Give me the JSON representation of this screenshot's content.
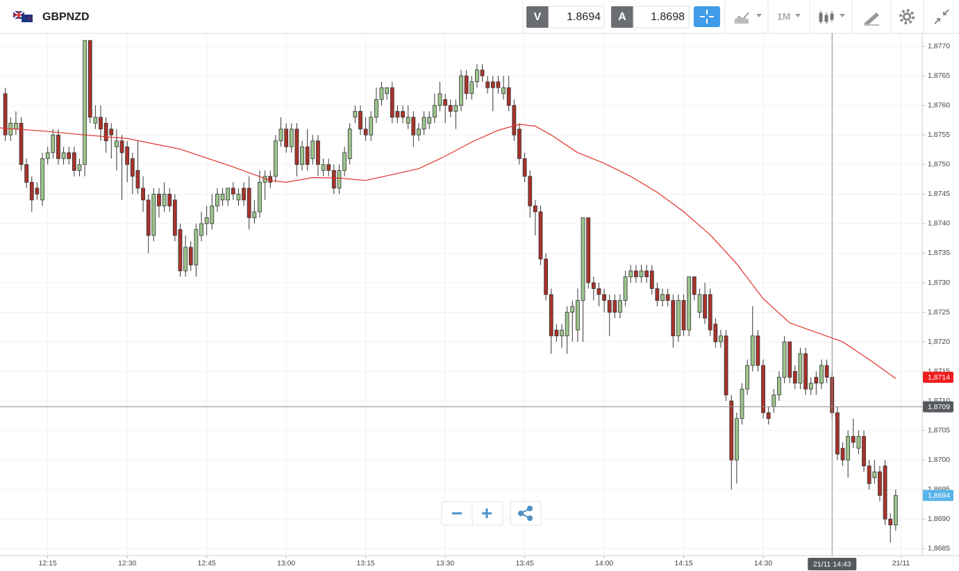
{
  "header": {
    "symbol": "GBPNZD",
    "sell_label": "V",
    "sell": 1.8694,
    "buy_label": "A",
    "buy": 1.8698,
    "period": "1M"
  },
  "chart_data": {
    "type": "candlestick",
    "up_color": "#9cc48d",
    "down_color": "#a8332a",
    "outline_color": "#333333",
    "xlim": [
      "12:06",
      "15:00"
    ],
    "ylim": [
      1.86838,
      1.87722
    ],
    "grid": true,
    "xticks": [
      "12:15",
      "12:30",
      "12:45",
      "13:00",
      "13:15",
      "13:30",
      "13:45",
      "14:00",
      "14:15",
      "14:30",
      {
        "value": "14:56",
        "label": "21/11"
      }
    ],
    "yticks": [
      {
        "value": 1.8685,
        "label": "1,8685"
      },
      {
        "value": 1.869,
        "label": "1,8690"
      },
      {
        "value": 1.8695,
        "label": "1,8695"
      },
      {
        "value": 1.87,
        "label": "1,8700"
      },
      {
        "value": 1.8705,
        "label": "1,8705"
      },
      {
        "value": 1.871,
        "label": "1,8710"
      },
      {
        "value": 1.8715,
        "label": "1,8715"
      },
      {
        "value": 1.872,
        "label": "1,8720"
      },
      {
        "value": 1.8725,
        "label": "1,8725"
      },
      {
        "value": 1.873,
        "label": "1,8730"
      },
      {
        "value": 1.8735,
        "label": "1,8735"
      },
      {
        "value": 1.874,
        "label": "1,8740"
      },
      {
        "value": 1.8745,
        "label": "1,8745"
      },
      {
        "value": 1.875,
        "label": "1,8750"
      },
      {
        "value": 1.8755,
        "label": "1,8755"
      },
      {
        "value": 1.876,
        "label": "1,8760"
      },
      {
        "value": 1.8765,
        "label": "1,8765"
      },
      {
        "value": 1.877,
        "label": "1,8770"
      }
    ],
    "x": [
      "12:07",
      "12:08",
      "12:09",
      "12:10",
      "12:11",
      "12:12",
      "12:13",
      "12:14",
      "12:15",
      "12:16",
      "12:17",
      "12:18",
      "12:19",
      "12:20",
      "12:21",
      "12:22",
      "12:23",
      "12:24",
      "12:25",
      "12:26",
      "12:27",
      "12:28",
      "12:29",
      "12:30",
      "12:31",
      "12:32",
      "12:33",
      "12:34",
      "12:35",
      "12:36",
      "12:37",
      "12:38",
      "12:39",
      "12:40",
      "12:41",
      "12:42",
      "12:43",
      "12:44",
      "12:45",
      "12:46",
      "12:47",
      "12:48",
      "12:49",
      "12:50",
      "12:51",
      "12:52",
      "12:53",
      "12:54",
      "12:55",
      "12:56",
      "12:57",
      "12:58",
      "12:59",
      "13:00",
      "13:01",
      "13:02",
      "13:03",
      "13:04",
      "13:05",
      "13:06",
      "13:07",
      "13:08",
      "13:09",
      "13:10",
      "13:11",
      "13:12",
      "13:13",
      "13:14",
      "13:15",
      "13:16",
      "13:17",
      "13:18",
      "13:19",
      "13:20",
      "13:21",
      "13:22",
      "13:23",
      "13:24",
      "13:25",
      "13:26",
      "13:27",
      "13:28",
      "13:29",
      "13:30",
      "13:31",
      "13:32",
      "13:33",
      "13:34",
      "13:35",
      "13:36",
      "13:37",
      "13:38",
      "13:39",
      "13:40",
      "13:41",
      "13:42",
      "13:43",
      "13:44",
      "13:45",
      "13:46",
      "13:47",
      "13:48",
      "13:49",
      "13:50",
      "13:51",
      "13:52",
      "13:53",
      "13:54",
      "13:55",
      "13:56",
      "13:57",
      "13:58",
      "13:59",
      "14:00",
      "14:01",
      "14:02",
      "14:03",
      "14:04",
      "14:05",
      "14:06",
      "14:07",
      "14:08",
      "14:09",
      "14:10",
      "14:11",
      "14:12",
      "14:13",
      "14:14",
      "14:15",
      "14:16",
      "14:17",
      "14:18",
      "14:19",
      "14:20",
      "14:21",
      "14:22",
      "14:23",
      "14:24",
      "14:25",
      "14:26",
      "14:27",
      "14:28",
      "14:29",
      "14:30",
      "14:31",
      "14:32",
      "14:33",
      "14:34",
      "14:35",
      "14:36",
      "14:37",
      "14:38",
      "14:39",
      "14:40",
      "14:41",
      "14:42",
      "14:43",
      "14:44",
      "14:45",
      "14:46",
      "14:47",
      "14:48",
      "14:49",
      "14:50",
      "14:51",
      "14:52",
      "14:53",
      "14:54",
      "14:55"
    ],
    "open": [
      1.8762,
      1.8755,
      1.8756,
      1.8757,
      1.875,
      1.8747,
      1.8746,
      1.8744,
      1.8751,
      1.8752,
      1.8755,
      1.8751,
      1.8752,
      1.8752,
      1.8749,
      1.875,
      1.8771,
      1.8757,
      1.8758,
      1.8757,
      1.8756,
      1.8753,
      1.8754,
      1.8753,
      1.8751,
      1.8749,
      1.8746,
      1.8744,
      1.8738,
      1.8745,
      1.8743,
      1.8745,
      1.8744,
      1.8739,
      1.8732,
      1.8736,
      1.8733,
      1.8738,
      1.874,
      1.874,
      1.8743,
      1.8744,
      1.8744,
      1.8746,
      1.8744,
      1.8746,
      1.8746,
      1.8741,
      1.8742,
      1.8747,
      1.8748,
      1.8748,
      1.8754,
      1.8756,
      1.8753,
      1.8756,
      1.875,
      1.8753,
      1.8751,
      1.8754,
      1.8749,
      1.875,
      1.8749,
      1.8746,
      1.8749,
      1.8751,
      1.8758,
      1.8759,
      1.8756,
      1.8755,
      1.8758,
      1.8761,
      1.8762,
      1.8763,
      1.8759,
      1.8759,
      1.8757,
      1.8758,
      1.8755,
      1.8756,
      1.8757,
      1.8758,
      1.876,
      1.8761,
      1.876,
      1.8759,
      1.876,
      1.8765,
      1.8762,
      1.8764,
      1.8766,
      1.8764,
      1.8764,
      1.8764,
      1.8762,
      1.8763,
      1.876,
      1.8756,
      1.8751,
      1.8748,
      1.8743,
      1.8742,
      1.8734,
      1.8728,
      1.8722,
      1.8721,
      1.8721,
      1.8725,
      1.8722,
      1.8727,
      1.8741,
      1.873,
      1.8729,
      1.8728,
      1.8727,
      1.8727,
      1.8725,
      1.8727,
      1.8731,
      1.8732,
      1.8731,
      1.8732,
      1.8732,
      1.8729,
      1.8727,
      1.8728,
      1.8727,
      1.8721,
      1.8727,
      1.8722,
      1.8731,
      1.8725,
      1.8728,
      1.8728,
      1.8723,
      1.872,
      1.8721,
      1.871,
      1.87,
      1.8707,
      1.8712,
      1.8716,
      1.8721,
      1.8716,
      1.8708,
      1.8709,
      1.8711,
      1.8714,
      1.872,
      1.8715,
      1.8713,
      1.8718,
      1.8712,
      1.8714,
      1.8713,
      1.8716,
      1.8714,
      1.8708,
      1.8702,
      1.87,
      1.8704,
      1.8702,
      1.8704,
      1.8699,
      1.8697,
      1.8698,
      1.8699,
      1.869,
      1.8689
    ],
    "high": [
      1.8763,
      1.8758,
      1.8759,
      1.8758,
      1.8751,
      1.8748,
      1.8747,
      1.8752,
      1.8753,
      1.8756,
      1.8756,
      1.8753,
      1.8753,
      1.8753,
      1.8751,
      1.8771,
      1.8771,
      1.876,
      1.876,
      1.8758,
      1.8757,
      1.8756,
      1.8755,
      1.8754,
      1.8752,
      1.8754,
      1.8748,
      1.8745,
      1.8746,
      1.8746,
      1.8747,
      1.8746,
      1.8745,
      1.874,
      1.8738,
      1.8737,
      1.874,
      1.8742,
      1.8743,
      1.8745,
      1.8746,
      1.8746,
      1.8746,
      1.8747,
      1.8746,
      1.8747,
      1.8748,
      1.8744,
      1.8749,
      1.8749,
      1.8749,
      1.8755,
      1.8758,
      1.8757,
      1.8757,
      1.8757,
      1.8754,
      1.8756,
      1.8755,
      1.8755,
      1.8751,
      1.8751,
      1.875,
      1.875,
      1.8753,
      1.8757,
      1.876,
      1.876,
      1.8758,
      1.8759,
      1.8763,
      1.8764,
      1.8763,
      1.8764,
      1.876,
      1.876,
      1.876,
      1.8759,
      1.8757,
      1.8759,
      1.8759,
      1.8762,
      1.8764,
      1.8762,
      1.8761,
      1.8761,
      1.8766,
      1.8766,
      1.8765,
      1.8767,
      1.8767,
      1.8765,
      1.8765,
      1.8765,
      1.8765,
      1.8765,
      1.8761,
      1.8757,
      1.8752,
      1.8749,
      1.8744,
      1.8743,
      1.8735,
      1.8729,
      1.8723,
      1.8723,
      1.8726,
      1.8727,
      1.8729,
      1.8741,
      1.8741,
      1.8731,
      1.873,
      1.8729,
      1.8728,
      1.8728,
      1.8728,
      1.8732,
      1.8733,
      1.8733,
      1.8733,
      1.8733,
      1.8733,
      1.873,
      1.8729,
      1.8729,
      1.8728,
      1.8728,
      1.8728,
      1.8731,
      1.8731,
      1.8729,
      1.873,
      1.8729,
      1.8724,
      1.8722,
      1.8722,
      1.8711,
      1.8708,
      1.8713,
      1.8717,
      1.8726,
      1.8722,
      1.8717,
      1.8709,
      1.8712,
      1.8715,
      1.8721,
      1.872,
      1.8716,
      1.8719,
      1.8719,
      1.8714,
      1.8715,
      1.8717,
      1.8717,
      1.8715,
      1.8709,
      1.8703,
      1.8705,
      1.8707,
      1.8705,
      1.8705,
      1.87,
      1.87,
      1.8699,
      1.87,
      1.8691,
      1.8695
    ],
    "low": [
      1.8754,
      1.8754,
      1.8755,
      1.8749,
      1.8746,
      1.8742,
      1.8744,
      1.8743,
      1.875,
      1.8751,
      1.875,
      1.875,
      1.875,
      1.8748,
      1.8748,
      1.8748,
      1.8757,
      1.8756,
      1.8754,
      1.8752,
      1.8751,
      1.8749,
      1.8744,
      1.8747,
      1.8745,
      1.8745,
      1.8742,
      1.8735,
      1.8737,
      1.8741,
      1.8742,
      1.8742,
      1.8737,
      1.8731,
      1.8731,
      1.8732,
      1.8731,
      1.8737,
      1.8738,
      1.8739,
      1.8742,
      1.8743,
      1.8743,
      1.8744,
      1.8743,
      1.8743,
      1.8739,
      1.874,
      1.8741,
      1.8744,
      1.8746,
      1.8747,
      1.8753,
      1.8752,
      1.8752,
      1.8748,
      1.8749,
      1.8749,
      1.875,
      1.8748,
      1.8748,
      1.8748,
      1.8745,
      1.8745,
      1.8748,
      1.875,
      1.8757,
      1.8755,
      1.8754,
      1.8754,
      1.8757,
      1.876,
      1.8761,
      1.8757,
      1.8757,
      1.8757,
      1.8756,
      1.8753,
      1.8754,
      1.8755,
      1.8756,
      1.8757,
      1.8759,
      1.8757,
      1.8758,
      1.8756,
      1.8759,
      1.8761,
      1.8761,
      1.8763,
      1.8764,
      1.8762,
      1.8759,
      1.8762,
      1.8761,
      1.8759,
      1.8754,
      1.875,
      1.8747,
      1.8741,
      1.8738,
      1.8733,
      1.8727,
      1.8718,
      1.872,
      1.8719,
      1.8718,
      1.872,
      1.872,
      1.872,
      1.8729,
      1.8727,
      1.8726,
      1.8725,
      1.8721,
      1.8724,
      1.8724,
      1.8726,
      1.873,
      1.873,
      1.873,
      1.873,
      1.8728,
      1.8726,
      1.8726,
      1.8726,
      1.8719,
      1.872,
      1.8721,
      1.8721,
      1.8727,
      1.8724,
      1.8723,
      1.8721,
      1.8719,
      1.8719,
      1.871,
      1.8695,
      1.8696,
      1.8706,
      1.8711,
      1.8715,
      1.8715,
      1.8707,
      1.8706,
      1.8708,
      1.871,
      1.8713,
      1.8713,
      1.8712,
      1.8712,
      1.8711,
      1.8711,
      1.8711,
      1.8712,
      1.8713,
      1.8707,
      1.87,
      1.8699,
      1.8697,
      1.8702,
      1.8701,
      1.8698,
      1.8695,
      1.8696,
      1.8693,
      1.8689,
      1.8686,
      1.8688
    ],
    "close": [
      1.8755,
      1.8757,
      1.8757,
      1.875,
      1.8747,
      1.8744,
      1.8745,
      1.8751,
      1.8752,
      1.8755,
      1.8751,
      1.8752,
      1.8751,
      1.8749,
      1.875,
      1.8771,
      1.8758,
      1.8758,
      1.8756,
      1.8754,
      1.8755,
      1.8754,
      1.8752,
      1.875,
      1.8748,
      1.8746,
      1.8744,
      1.8738,
      1.8745,
      1.8743,
      1.8745,
      1.8743,
      1.8738,
      1.8732,
      1.8736,
      1.8733,
      1.8739,
      1.874,
      1.8741,
      1.8743,
      1.8745,
      1.8745,
      1.8746,
      1.8745,
      1.8745,
      1.8744,
      1.8741,
      1.8742,
      1.8747,
      1.8748,
      1.8747,
      1.8754,
      1.8756,
      1.8753,
      1.8756,
      1.875,
      1.8753,
      1.875,
      1.8754,
      1.875,
      1.875,
      1.8749,
      1.8746,
      1.8749,
      1.8752,
      1.8756,
      1.8759,
      1.8756,
      1.8755,
      1.8758,
      1.8761,
      1.8763,
      1.8763,
      1.8758,
      1.8758,
      1.8758,
      1.8758,
      1.8755,
      1.8756,
      1.8758,
      1.8758,
      1.876,
      1.8762,
      1.876,
      1.8759,
      1.876,
      1.8765,
      1.8762,
      1.8764,
      1.8766,
      1.8765,
      1.8763,
      1.8763,
      1.8763,
      1.8763,
      1.876,
      1.8755,
      1.8751,
      1.8748,
      1.8743,
      1.8742,
      1.8734,
      1.8728,
      1.8721,
      1.8721,
      1.8722,
      1.8725,
      1.8726,
      1.8727,
      1.8741,
      1.873,
      1.8729,
      1.8728,
      1.8727,
      1.8725,
      1.8725,
      1.8727,
      1.8731,
      1.8732,
      1.8731,
      1.8732,
      1.8731,
      1.8729,
      1.8727,
      1.8728,
      1.8727,
      1.8721,
      1.8727,
      1.8722,
      1.8731,
      1.8728,
      1.8728,
      1.8724,
      1.8722,
      1.872,
      1.8721,
      1.8711,
      1.87,
      1.8707,
      1.8712,
      1.8716,
      1.8721,
      1.8716,
      1.8708,
      1.8707,
      1.8711,
      1.8714,
      1.872,
      1.8714,
      1.8713,
      1.8718,
      1.8712,
      1.8713,
      1.8713,
      1.8716,
      1.8714,
      1.8708,
      1.8701,
      1.87,
      1.8704,
      1.8703,
      1.8704,
      1.8699,
      1.8696,
      1.8698,
      1.8694,
      1.869,
      1.8689,
      1.8694
    ],
    "ma": {
      "color": "#e0312b",
      "x": [
        "12:06",
        "12:15",
        "12:22",
        "12:30",
        "12:40",
        "12:50",
        "12:57",
        "13:00",
        "13:05",
        "13:10",
        "13:15",
        "13:20",
        "13:25",
        "13:30",
        "13:35",
        "13:40",
        "13:44",
        "13:47",
        "13:50",
        "13:55",
        "14:00",
        "14:05",
        "14:10",
        "14:15",
        "14:20",
        "14:25",
        "14:30",
        "14:35",
        "14:40",
        "14:45",
        "14:50",
        "14:55"
      ],
      "values": [
        1.87562,
        1.87556,
        1.8755,
        1.87544,
        1.87526,
        1.87496,
        1.87473,
        1.8747,
        1.87478,
        1.87477,
        1.87473,
        1.87483,
        1.87493,
        1.87514,
        1.87538,
        1.87558,
        1.87568,
        1.87565,
        1.8755,
        1.8752,
        1.87502,
        1.8748,
        1.87453,
        1.8742,
        1.87381,
        1.87332,
        1.87273,
        1.87232,
        1.87216,
        1.872,
        1.8717,
        1.87138
      ]
    },
    "price_markers": [
      {
        "value": 1.8714,
        "label": "1,8714",
        "color": "#ee1c1c"
      },
      {
        "value": 1.8694,
        "label": "1,8694",
        "color": "#58b4e8"
      }
    ],
    "crosshair": {
      "x": "14:43",
      "x_label": "21/11 14:43",
      "y": 1.8709,
      "y_label": "1,8709",
      "color": "#55585c"
    }
  }
}
